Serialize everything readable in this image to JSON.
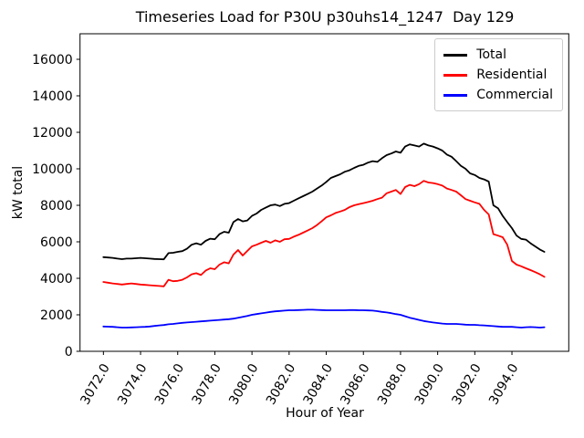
{
  "chart_data": {
    "type": "line",
    "title": "Timeseries Load for P30U p30uhs14_1247  Day 129",
    "xlabel": "Hour of Year",
    "ylabel": "kW total",
    "grid": false,
    "legend_position": "upper right",
    "xlim": [
      3070.74,
      3097.06
    ],
    "ylim": [
      0,
      17400
    ],
    "x_ticks": {
      "values": [
        3072,
        3074,
        3076,
        3078,
        3080,
        3082,
        3084,
        3086,
        3088,
        3090,
        3092,
        3094
      ],
      "labels": [
        "3072.0",
        "3074.0",
        "3076.0",
        "3078.0",
        "3080.0",
        "3082.0",
        "3084.0",
        "3086.0",
        "3088.0",
        "3090.0",
        "3092.0",
        "3094.0"
      ],
      "rotation_deg": 60
    },
    "y_ticks": {
      "values": [
        0,
        2000,
        4000,
        6000,
        8000,
        10000,
        12000,
        14000,
        16000
      ],
      "labels": [
        "0",
        "2000",
        "4000",
        "6000",
        "8000",
        "10000",
        "12000",
        "14000",
        "16000"
      ]
    },
    "x": [
      3072.0,
      3072.25,
      3072.5,
      3072.75,
      3073.0,
      3073.25,
      3073.5,
      3073.75,
      3074.0,
      3074.25,
      3074.5,
      3074.75,
      3075.0,
      3075.25,
      3075.5,
      3075.75,
      3076.0,
      3076.25,
      3076.5,
      3076.75,
      3077.0,
      3077.25,
      3077.5,
      3077.75,
      3078.0,
      3078.25,
      3078.5,
      3078.75,
      3079.0,
      3079.25,
      3079.5,
      3079.75,
      3080.0,
      3080.25,
      3080.5,
      3080.75,
      3081.0,
      3081.25,
      3081.5,
      3081.75,
      3082.0,
      3082.25,
      3082.5,
      3082.75,
      3083.0,
      3083.25,
      3083.5,
      3083.75,
      3084.0,
      3084.25,
      3084.5,
      3084.75,
      3085.0,
      3085.25,
      3085.5,
      3085.75,
      3086.0,
      3086.25,
      3086.5,
      3086.75,
      3087.0,
      3087.25,
      3087.5,
      3087.75,
      3088.0,
      3088.25,
      3088.5,
      3088.75,
      3089.0,
      3089.25,
      3089.5,
      3089.75,
      3090.0,
      3090.25,
      3090.5,
      3090.75,
      3091.0,
      3091.25,
      3091.5,
      3091.75,
      3092.0,
      3092.25,
      3092.5,
      3092.75,
      3093.0,
      3093.25,
      3093.5,
      3093.75,
      3094.0,
      3094.25,
      3094.5,
      3094.75,
      3095.0,
      3095.25,
      3095.5,
      3095.75
    ],
    "series": [
      {
        "name": "Total",
        "color": "#000000",
        "values": [
          5160,
          5140,
          5120,
          5080,
          5050,
          5080,
          5080,
          5100,
          5120,
          5100,
          5080,
          5060,
          5050,
          5040,
          5380,
          5400,
          5450,
          5490,
          5620,
          5840,
          5920,
          5840,
          6050,
          6170,
          6140,
          6420,
          6550,
          6500,
          7080,
          7250,
          7120,
          7170,
          7420,
          7550,
          7750,
          7880,
          8000,
          8040,
          7960,
          8080,
          8120,
          8250,
          8380,
          8500,
          8620,
          8750,
          8920,
          9080,
          9280,
          9500,
          9600,
          9700,
          9840,
          9920,
          10050,
          10160,
          10220,
          10340,
          10420,
          10380,
          10580,
          10750,
          10840,
          10950,
          10880,
          11220,
          11340,
          11280,
          11220,
          11380,
          11280,
          11220,
          11120,
          11000,
          10780,
          10660,
          10420,
          10160,
          10000,
          9750,
          9660,
          9500,
          9420,
          9300,
          8000,
          7840,
          7420,
          7080,
          6750,
          6340,
          6160,
          6120,
          5920,
          5750,
          5580,
          5450
        ]
      },
      {
        "name": "Residential",
        "color": "#ff0000",
        "values": [
          3800,
          3760,
          3720,
          3690,
          3660,
          3690,
          3720,
          3690,
          3660,
          3640,
          3620,
          3600,
          3580,
          3560,
          3920,
          3840,
          3860,
          3920,
          4050,
          4220,
          4280,
          4180,
          4420,
          4550,
          4500,
          4750,
          4880,
          4820,
          5300,
          5550,
          5250,
          5500,
          5750,
          5840,
          5950,
          6050,
          5950,
          6080,
          6000,
          6140,
          6160,
          6280,
          6380,
          6500,
          6620,
          6750,
          6920,
          7120,
          7340,
          7450,
          7580,
          7660,
          7750,
          7900,
          8000,
          8060,
          8120,
          8180,
          8250,
          8340,
          8420,
          8660,
          8750,
          8840,
          8620,
          9000,
          9120,
          9050,
          9160,
          9340,
          9250,
          9220,
          9160,
          9080,
          8920,
          8840,
          8750,
          8550,
          8340,
          8250,
          8160,
          8080,
          7750,
          7500,
          6420,
          6340,
          6250,
          5840,
          4950,
          4750,
          4660,
          4550,
          4450,
          4340,
          4220,
          4080
        ]
      },
      {
        "name": "Commercial",
        "color": "#0000ff",
        "values": [
          1360,
          1350,
          1340,
          1320,
          1300,
          1300,
          1310,
          1320,
          1330,
          1340,
          1360,
          1390,
          1420,
          1440,
          1480,
          1500,
          1530,
          1560,
          1580,
          1600,
          1620,
          1640,
          1660,
          1680,
          1700,
          1720,
          1740,
          1760,
          1790,
          1840,
          1890,
          1940,
          2000,
          2040,
          2080,
          2120,
          2160,
          2190,
          2210,
          2230,
          2250,
          2250,
          2260,
          2270,
          2280,
          2280,
          2270,
          2260,
          2250,
          2250,
          2250,
          2250,
          2250,
          2260,
          2260,
          2250,
          2250,
          2240,
          2230,
          2200,
          2160,
          2130,
          2090,
          2040,
          2000,
          1920,
          1840,
          1780,
          1720,
          1660,
          1620,
          1580,
          1550,
          1520,
          1500,
          1500,
          1500,
          1480,
          1460,
          1450,
          1450,
          1430,
          1420,
          1400,
          1380,
          1360,
          1340,
          1340,
          1340,
          1320,
          1300,
          1320,
          1330,
          1320,
          1300,
          1320
        ]
      }
    ]
  }
}
